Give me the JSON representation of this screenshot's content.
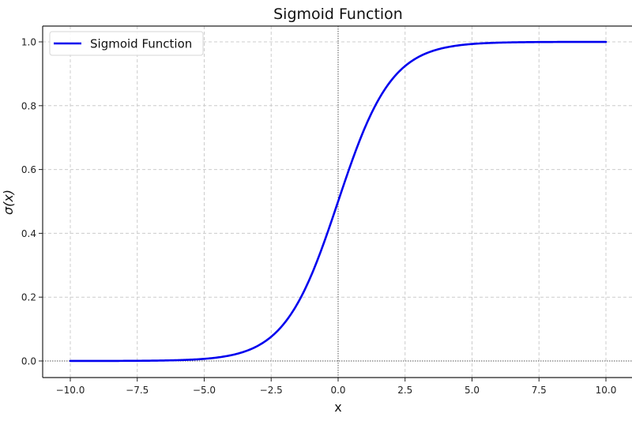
{
  "chart_data": {
    "type": "line",
    "title": "Sigmoid Function",
    "xlabel": "x",
    "ylabel": "σ(x)",
    "xlim": [
      -11,
      11
    ],
    "ylim": [
      -0.05,
      1.05
    ],
    "x_ticks": [
      -10.0,
      -7.5,
      -5.0,
      -2.5,
      0.0,
      2.5,
      5.0,
      7.5,
      10.0
    ],
    "x_tick_labels": [
      "−10.0",
      "−7.5",
      "−5.0",
      "−2.5",
      "0.0",
      "2.5",
      "5.0",
      "7.5",
      "10.0"
    ],
    "y_ticks": [
      0.0,
      0.2,
      0.4,
      0.6,
      0.8,
      1.0
    ],
    "y_tick_labels": [
      "0.0",
      "0.2",
      "0.4",
      "0.6",
      "0.8",
      "1.0"
    ],
    "grid": true,
    "grid_style": "dashed",
    "legend_position": "upper left",
    "reference_lines": [
      {
        "orientation": "horizontal",
        "value": 0,
        "style": "dotted",
        "color": "#555555"
      },
      {
        "orientation": "vertical",
        "value": 0,
        "style": "dotted",
        "color": "#555555"
      }
    ],
    "series": [
      {
        "name": "Sigmoid Function",
        "color": "#0000ee",
        "function": "1/(1+exp(-x))",
        "x": [
          -10,
          -8,
          -6,
          -5,
          -4,
          -3,
          -2.5,
          -2,
          -1.5,
          -1,
          -0.5,
          0,
          0.5,
          1,
          1.5,
          2,
          2.5,
          3,
          4,
          5,
          6,
          8,
          10
        ],
        "y": [
          0.0,
          0.0003,
          0.0025,
          0.0067,
          0.018,
          0.0474,
          0.0759,
          0.1192,
          0.1824,
          0.2689,
          0.3775,
          0.5,
          0.6225,
          0.7311,
          0.8176,
          0.8808,
          0.9241,
          0.9526,
          0.982,
          0.9933,
          0.9975,
          0.9997,
          1.0
        ]
      }
    ]
  },
  "colors": {
    "line": "#0000ee",
    "grid": "#cccccc",
    "axis": "#222222",
    "reference": "#555555"
  }
}
